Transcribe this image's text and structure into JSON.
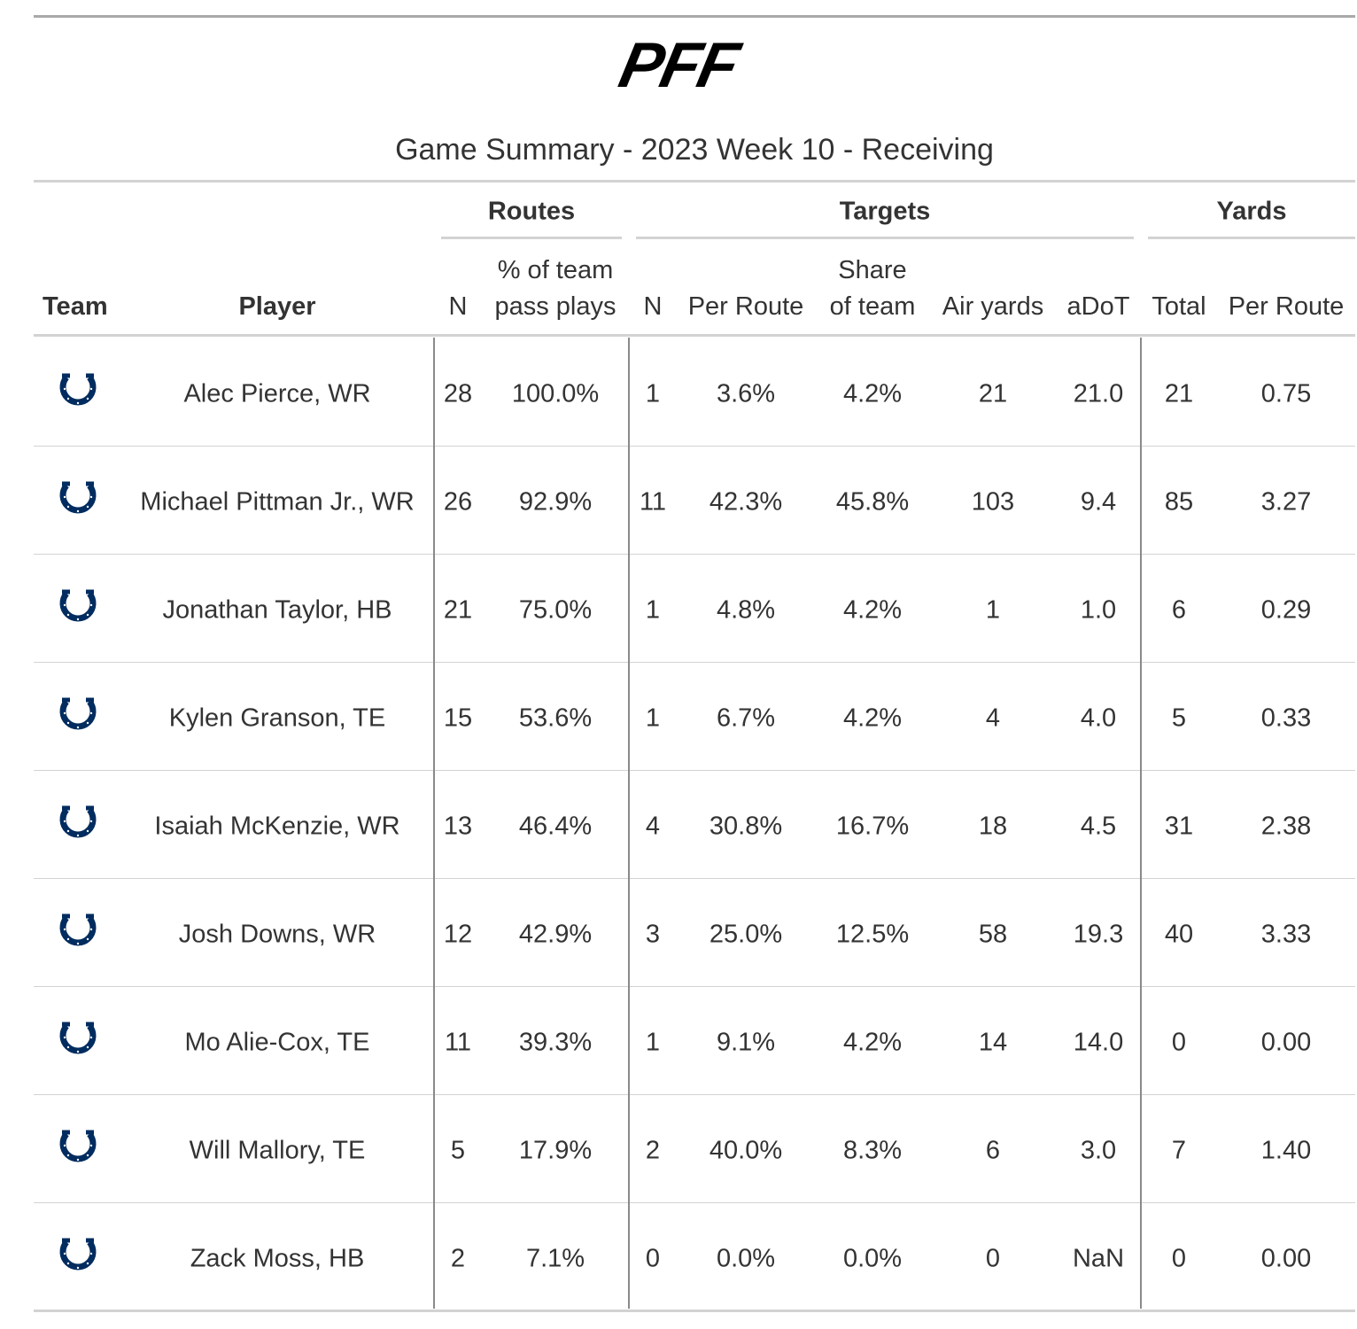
{
  "logo": "PFF",
  "title": "Game Summary - 2023 Week 10 - Receiving",
  "spanners": [
    "Routes",
    "Targets",
    "Yards"
  ],
  "columns": [
    [
      "Team"
    ],
    [
      "Player"
    ],
    [
      "N"
    ],
    [
      "% of team",
      "pass plays"
    ],
    [
      "N"
    ],
    [
      "Per Route"
    ],
    [
      "Share",
      "of team"
    ],
    [
      "Air yards"
    ],
    [
      "aDoT"
    ],
    [
      "Total"
    ],
    [
      "Per Route"
    ]
  ],
  "rows": [
    [
      "Alec Pierce, WR",
      "28",
      "100.0%",
      "1",
      "3.6%",
      "4.2%",
      "21",
      "21.0",
      "21",
      "0.75"
    ],
    [
      "Michael Pittman Jr., WR",
      "26",
      "92.9%",
      "11",
      "42.3%",
      "45.8%",
      "103",
      "9.4",
      "85",
      "3.27"
    ],
    [
      "Jonathan Taylor, HB",
      "21",
      "75.0%",
      "1",
      "4.8%",
      "4.2%",
      "1",
      "1.0",
      "6",
      "0.29"
    ],
    [
      "Kylen Granson, TE",
      "15",
      "53.6%",
      "1",
      "6.7%",
      "4.2%",
      "4",
      "4.0",
      "5",
      "0.33"
    ],
    [
      "Isaiah McKenzie, WR",
      "13",
      "46.4%",
      "4",
      "30.8%",
      "16.7%",
      "18",
      "4.5",
      "31",
      "2.38"
    ],
    [
      "Josh Downs, WR",
      "12",
      "42.9%",
      "3",
      "25.0%",
      "12.5%",
      "58",
      "19.3",
      "40",
      "3.33"
    ],
    [
      "Mo Alie-Cox, TE",
      "11",
      "39.3%",
      "1",
      "9.1%",
      "4.2%",
      "14",
      "14.0",
      "0",
      "0.00"
    ],
    [
      "Will Mallory, TE",
      "5",
      "17.9%",
      "2",
      "40.0%",
      "8.3%",
      "6",
      "3.0",
      "7",
      "1.40"
    ],
    [
      "Zack Moss, HB",
      "2",
      "7.1%",
      "0",
      "0.0%",
      "0.0%",
      "0",
      "NaN",
      "0",
      "0.00"
    ]
  ]
}
